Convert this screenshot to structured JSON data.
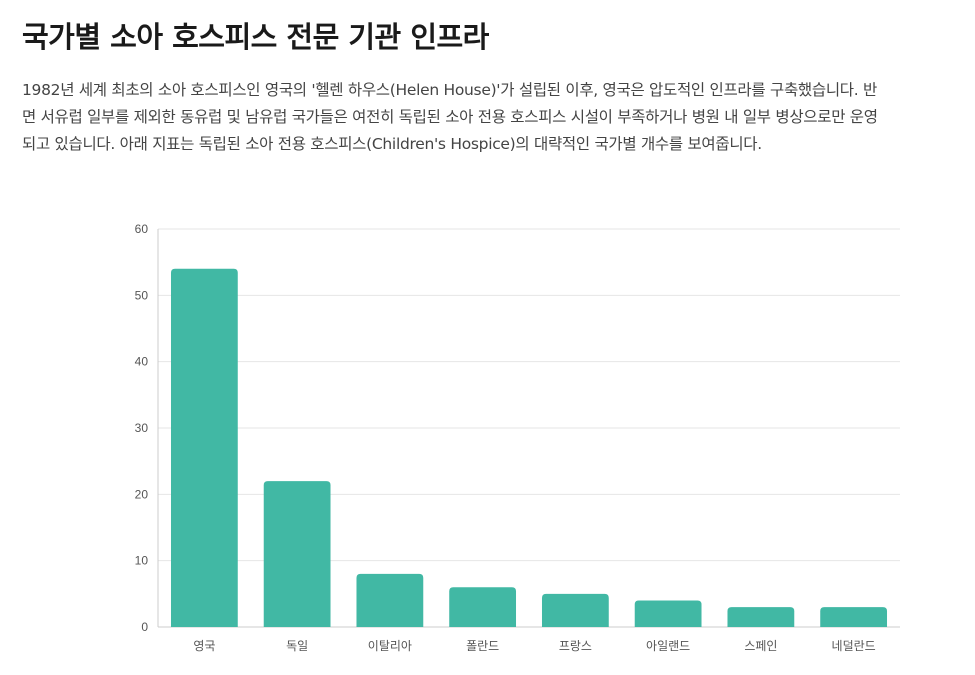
{
  "page": {
    "title": "국가별 소아 호스피스 전문 기관 인프라",
    "description": "1982년 세계 최초의 소아 호스피스인 영국의 '헬렌 하우스(Helen House)'가 설립된 이후, 영국은 압도적인 인프라를 구축했습니다. 반면 서유럽 일부를 제외한 동유럽 및 남유럽 국가들은 여전히 독립된 소아 전용 호스피스 시설이 부족하거나 병원 내 일부 병상으로만 운영되고 있습니다. 아래 지표는 독립된 소아 전용 호스피스(Children's Hospice)의 대략적인 국가별 개수를 보여줍니다."
  },
  "chart_data": {
    "type": "bar",
    "categories": [
      "영국",
      "독일",
      "이탈리아",
      "폴란드",
      "프랑스",
      "아일랜드",
      "스페인",
      "네덜란드"
    ],
    "values": [
      54,
      22,
      8,
      6,
      5,
      4,
      3,
      3
    ],
    "ylim": [
      0,
      60
    ],
    "yticks": [
      0,
      10,
      20,
      30,
      40,
      50,
      60
    ],
    "xlabel": "",
    "ylabel": "",
    "grid": true,
    "bar_color": "#41b8a4",
    "grid_color": "#e6e6e6",
    "axis_color": "#cccccc"
  }
}
